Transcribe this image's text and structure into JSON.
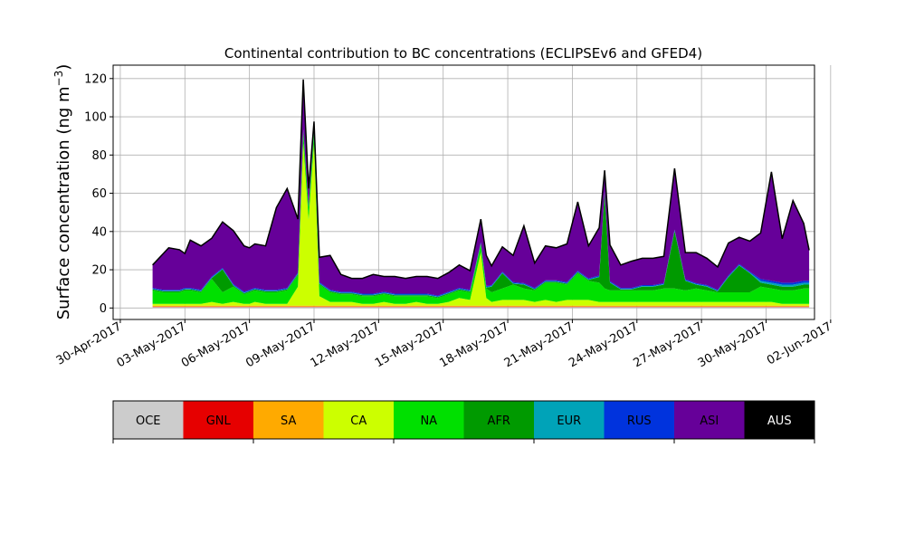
{
  "chart_data": {
    "type": "area",
    "stacked": true,
    "title": "Continental contribution to BC concentrations (ECLIPSEv6 and GFED4)",
    "ylabel_main": "Surface concentration (ng m",
    "ylabel_sup": "−3",
    "ylabel_close": ")",
    "xlabel": "",
    "ylim": [
      -6,
      127
    ],
    "xlim": [
      "2017-04-29T16:00",
      "2017-06-01T06:00"
    ],
    "yticks": [
      0,
      20,
      40,
      60,
      80,
      100,
      120
    ],
    "xticks": [
      {
        "date": "2017-04-30",
        "label": "30-Apr-2017"
      },
      {
        "date": "2017-05-03",
        "label": "03-May-2017"
      },
      {
        "date": "2017-05-06",
        "label": "06-May-2017"
      },
      {
        "date": "2017-05-09",
        "label": "09-May-2017"
      },
      {
        "date": "2017-05-12",
        "label": "12-May-2017"
      },
      {
        "date": "2017-05-15",
        "label": "15-May-2017"
      },
      {
        "date": "2017-05-18",
        "label": "18-May-2017"
      },
      {
        "date": "2017-05-21",
        "label": "21-May-2017"
      },
      {
        "date": "2017-05-24",
        "label": "24-May-2017"
      },
      {
        "date": "2017-05-27",
        "label": "27-May-2017"
      },
      {
        "date": "2017-05-30",
        "label": "30-May-2017"
      },
      {
        "date": "2017-06-02",
        "label": "02-Jun-2017"
      }
    ],
    "grid": true,
    "legend_placement": "bottom colorbar",
    "x": [
      "2017-05-01T12:00",
      "2017-05-02T00:00",
      "2017-05-02T06:00",
      "2017-05-02T18:00",
      "2017-05-03T00:00",
      "2017-05-03T06:00",
      "2017-05-03T18:00",
      "2017-05-04T06:00",
      "2017-05-04T18:00",
      "2017-05-05T06:00",
      "2017-05-05T18:00",
      "2017-05-06T00:00",
      "2017-05-06T06:00",
      "2017-05-06T18:00",
      "2017-05-07T06:00",
      "2017-05-07T18:00",
      "2017-05-08T06:00",
      "2017-05-08T12:00",
      "2017-05-08T18:00",
      "2017-05-09T00:00",
      "2017-05-09T06:00",
      "2017-05-09T18:00",
      "2017-05-10T06:00",
      "2017-05-10T18:00",
      "2017-05-11T06:00",
      "2017-05-11T18:00",
      "2017-05-12T06:00",
      "2017-05-12T18:00",
      "2017-05-13T06:00",
      "2017-05-13T18:00",
      "2017-05-14T06:00",
      "2017-05-14T18:00",
      "2017-05-15T06:00",
      "2017-05-15T18:00",
      "2017-05-16T06:00",
      "2017-05-16T18:00",
      "2017-05-17T00:00",
      "2017-05-17T06:00",
      "2017-05-17T18:00",
      "2017-05-18T06:00",
      "2017-05-18T18:00",
      "2017-05-19T06:00",
      "2017-05-19T18:00",
      "2017-05-20T06:00",
      "2017-05-20T18:00",
      "2017-05-21T06:00",
      "2017-05-21T18:00",
      "2017-05-22T06:00",
      "2017-05-22T12:00",
      "2017-05-22T18:00",
      "2017-05-23T06:00",
      "2017-05-23T18:00",
      "2017-05-24T06:00",
      "2017-05-24T18:00",
      "2017-05-25T06:00",
      "2017-05-25T18:00",
      "2017-05-26T06:00",
      "2017-05-26T18:00",
      "2017-05-27T06:00",
      "2017-05-27T18:00",
      "2017-05-28T06:00",
      "2017-05-28T18:00",
      "2017-05-29T06:00",
      "2017-05-29T18:00",
      "2017-05-30T06:00",
      "2017-05-30T18:00",
      "2017-05-31T06:00",
      "2017-05-31T18:00",
      "2017-06-01T00:00"
    ],
    "series": [
      {
        "name": "OCE",
        "color": "#cccccc",
        "values": [
          0.5,
          0.5,
          0.5,
          0.5,
          0.5,
          0.5,
          0.5,
          0.5,
          0.5,
          0.5,
          0.5,
          0.5,
          0.5,
          0.5,
          0.5,
          0.5,
          0.5,
          0.5,
          0.5,
          0.5,
          0.5,
          0.5,
          0.5,
          0.5,
          0.5,
          0.5,
          0.5,
          0.5,
          0.5,
          0.5,
          0.5,
          0.5,
          0.5,
          0.5,
          0.5,
          0.5,
          0.5,
          0.5,
          0.5,
          0.5,
          0.5,
          0.5,
          0.5,
          0.5,
          0.5,
          0.5,
          0.5,
          0.5,
          0.5,
          0.5,
          0.5,
          0.5,
          0.5,
          0.5,
          0.5,
          0.5,
          0.5,
          0.5,
          0.5,
          0.5,
          0.5,
          0.5,
          0.5,
          0.5,
          0.5,
          0.5,
          0.5,
          0.5,
          0.5
        ]
      },
      {
        "name": "GNL",
        "color": "#e60000",
        "values": [
          0.2,
          0.2,
          0.2,
          0.2,
          0.2,
          0.2,
          0.2,
          0.2,
          0.2,
          0.2,
          0.2,
          0.2,
          0.2,
          0.2,
          0.2,
          0.2,
          0.2,
          0.2,
          0.2,
          0.2,
          0.2,
          0.2,
          0.2,
          0.2,
          0.2,
          0.2,
          0.2,
          0.2,
          0.2,
          0.2,
          0.2,
          0.2,
          0.2,
          0.2,
          0.2,
          0.2,
          0.2,
          0.2,
          0.2,
          0.2,
          0.2,
          0.2,
          0.2,
          0.2,
          0.2,
          0.2,
          0.2,
          0.2,
          0.2,
          0.2,
          0.2,
          0.2,
          0.2,
          0.2,
          0.2,
          0.2,
          0.2,
          0.2,
          0.2,
          0.2,
          0.2,
          0.2,
          0.2,
          0.2,
          0.2,
          0.2,
          0.2,
          0.2,
          0.2
        ]
      },
      {
        "name": "SA",
        "color": "#ffaa00",
        "values": [
          0.5,
          0.5,
          0.5,
          0.5,
          0.5,
          0.5,
          0.5,
          0.5,
          0.5,
          0.5,
          0.5,
          0.5,
          0.5,
          0.5,
          0.5,
          0.5,
          0.5,
          0.5,
          0.5,
          0.5,
          0.5,
          0.5,
          0.5,
          0.5,
          0.5,
          0.5,
          0.5,
          0.5,
          0.5,
          0.5,
          0.5,
          0.5,
          0.5,
          0.5,
          0.5,
          0.5,
          0.5,
          0.5,
          0.5,
          0.5,
          0.5,
          0.5,
          0.5,
          0.5,
          0.5,
          0.5,
          0.5,
          0.5,
          0.5,
          0.5,
          0.5,
          0.5,
          0.5,
          0.5,
          0.5,
          0.5,
          0.5,
          0.5,
          0.5,
          0.5,
          0.5,
          0.5,
          0.5,
          0.5,
          0.5,
          0.5,
          0.5,
          0.5,
          0.5
        ]
      },
      {
        "name": "CA",
        "color": "#ccff00",
        "values": [
          1,
          1,
          1,
          1,
          1,
          1,
          1,
          2,
          1,
          2,
          1,
          1,
          2,
          1,
          1,
          1,
          10,
          85,
          45,
          85,
          5,
          2,
          2,
          2,
          1,
          1,
          2,
          1,
          1,
          2,
          1,
          1,
          2,
          4,
          3,
          28,
          4,
          2,
          3,
          3,
          3,
          2,
          3,
          2,
          3,
          3,
          3,
          2,
          2,
          2,
          2,
          2,
          2,
          2,
          2,
          2,
          2,
          2,
          2,
          2,
          2,
          2,
          2,
          2,
          2,
          1,
          1,
          1,
          1
        ]
      },
      {
        "name": "NA",
        "color": "#00e000",
        "values": [
          7,
          6,
          6,
          6,
          7,
          7,
          6,
          12,
          6,
          8,
          5,
          6,
          6,
          6,
          6,
          7,
          6,
          6,
          6,
          6,
          6,
          5,
          4,
          4,
          4,
          4,
          4,
          4,
          4,
          3,
          4,
          3,
          4,
          4,
          4,
          4,
          5,
          5,
          6,
          8,
          6,
          6,
          9,
          10,
          8,
          14,
          10,
          10,
          7,
          6,
          6,
          6,
          6,
          6,
          7,
          7,
          6,
          7,
          6,
          5,
          5,
          5,
          5,
          8,
          7,
          7,
          7,
          8,
          8
        ]
      },
      {
        "name": "AFR",
        "color": "#009a00",
        "values": [
          0.5,
          0.5,
          0.5,
          0.5,
          0.5,
          0.5,
          0.5,
          0.5,
          12,
          0.5,
          0.5,
          0.5,
          0.5,
          0.5,
          0.5,
          0.5,
          0.5,
          0.5,
          0.5,
          0.5,
          0.5,
          0.5,
          0.5,
          0.5,
          0.5,
          0.5,
          0.5,
          0.5,
          0.5,
          0.5,
          0.5,
          0.5,
          0.5,
          0.5,
          0.5,
          0.5,
          0.5,
          3,
          8,
          0.5,
          2,
          0.5,
          0.5,
          0.5,
          0.5,
          0.5,
          0.5,
          3,
          50,
          4,
          0.5,
          0.5,
          2,
          2,
          2,
          30,
          5,
          2,
          2,
          0.5,
          8,
          14,
          10,
          2,
          2,
          2,
          2,
          2,
          2
        ]
      },
      {
        "name": "EUR",
        "color": "#00a3b8",
        "values": [
          0.3,
          0.3,
          0.3,
          0.3,
          0.3,
          0.3,
          0.3,
          0.3,
          0.3,
          0.3,
          0.3,
          0.3,
          0.3,
          0.3,
          0.3,
          0.3,
          0.3,
          0.3,
          0.3,
          0.3,
          0.3,
          0.3,
          0.3,
          0.3,
          0.3,
          0.3,
          0.3,
          0.3,
          0.3,
          0.3,
          0.3,
          0.3,
          0.3,
          0.3,
          0.3,
          0.3,
          0.3,
          0.3,
          0.3,
          0.3,
          0.3,
          0.3,
          0.3,
          0.3,
          0.3,
          0.3,
          0.3,
          0.3,
          0.3,
          0.3,
          0.3,
          0.3,
          0.3,
          0.3,
          0.3,
          0.3,
          0.3,
          0.3,
          0.3,
          0.3,
          0.3,
          0.3,
          0.3,
          1,
          1,
          1,
          1,
          1,
          1
        ]
      },
      {
        "name": "RUS",
        "color": "#0033dd",
        "values": [
          0.5,
          0.5,
          0.5,
          0.5,
          0.5,
          0.5,
          0.5,
          0.5,
          0.5,
          0.5,
          0.5,
          0.5,
          0.5,
          0.5,
          0.5,
          0.5,
          0.5,
          0.5,
          0.5,
          0.5,
          0.5,
          0.5,
          0.5,
          0.5,
          0.5,
          0.5,
          0.5,
          0.5,
          0.5,
          0.5,
          0.5,
          0.5,
          0.5,
          0.5,
          0.5,
          0.5,
          0.5,
          0.5,
          0.5,
          0.5,
          0.5,
          0.5,
          0.5,
          0.5,
          0.5,
          0.5,
          0.5,
          0.5,
          0.5,
          0.5,
          0.5,
          0.5,
          0.5,
          0.5,
          0.5,
          0.5,
          0.5,
          0.5,
          0.5,
          0.5,
          0.5,
          0.5,
          0.5,
          1,
          1,
          1,
          1,
          1,
          1
        ]
      },
      {
        "name": "ASI",
        "color": "#660099",
        "values": [
          12,
          19,
          22,
          21,
          18,
          25,
          23,
          20,
          24,
          28,
          24,
          22,
          23,
          23,
          43,
          52,
          28,
          26,
          9,
          4,
          13,
          18,
          9,
          7,
          8,
          10,
          8,
          9,
          8,
          9,
          9,
          9,
          10,
          12,
          10,
          12,
          16,
          10,
          13,
          14,
          30,
          13,
          18,
          17,
          20,
          36,
          17,
          25,
          11,
          19,
          12,
          14,
          14,
          14,
          14,
          32,
          14,
          16,
          14,
          12,
          17,
          14,
          16,
          24,
          57,
          23,
          43,
          30,
          16
        ]
      },
      {
        "name": "AUS",
        "color": "#000000",
        "values": [
          0,
          0,
          0,
          0,
          0,
          0,
          0,
          0,
          0,
          0,
          0,
          0,
          0,
          0,
          0,
          0,
          0,
          0,
          0,
          0,
          0,
          0,
          0,
          0,
          0,
          0,
          0,
          0,
          0,
          0,
          0,
          0,
          0,
          0,
          0,
          0,
          0,
          0,
          0,
          0,
          0,
          0,
          0,
          0,
          0,
          0,
          0,
          0,
          0,
          0,
          0,
          0,
          0,
          0,
          0,
          0,
          0,
          0,
          0,
          0,
          0,
          0,
          0,
          0,
          0,
          0,
          0,
          0,
          0
        ]
      }
    ]
  }
}
